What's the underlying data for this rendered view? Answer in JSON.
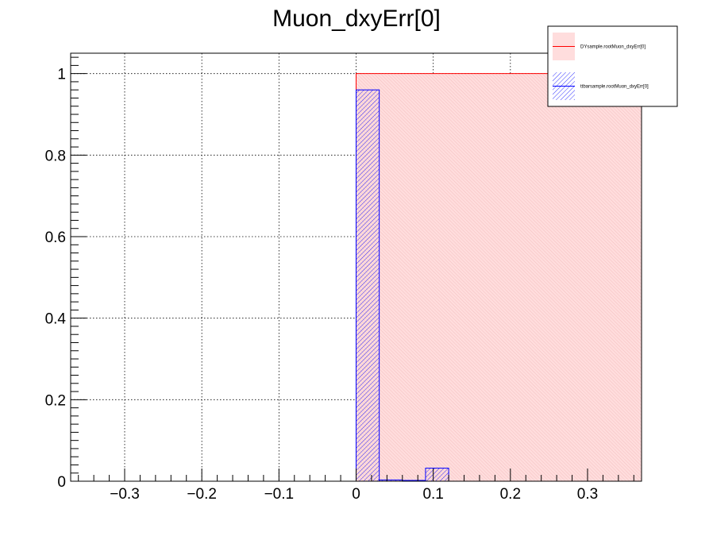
{
  "chart_data": {
    "type": "bar",
    "title": "Muon_dxyErr[0]",
    "xlabel": "",
    "ylabel": "",
    "xlim": [
      -0.37,
      0.37
    ],
    "ylim": [
      0,
      1.05
    ],
    "grid": true,
    "legend_position": "top-right",
    "x_tick_labels": [
      "−0.3",
      "−0.2",
      "−0.1",
      "0",
      "0.1",
      "0.2",
      "0.3"
    ],
    "x_tick_values": [
      -0.3,
      -0.2,
      -0.1,
      0,
      0.1,
      0.2,
      0.3
    ],
    "y_tick_labels": [
      "0",
      "0.2",
      "0.4",
      "0.6",
      "0.8",
      "1"
    ],
    "y_tick_values": [
      0,
      0.2,
      0.4,
      0.6,
      0.8,
      1.0
    ],
    "series": [
      {
        "name": "DYsample.rootMuon_dxyErr[0]",
        "color": "#ff0000",
        "fill": "#ffdddd",
        "style": "solid-fill",
        "bins": [
          {
            "x0": 0.0,
            "x1": 0.37,
            "value": 1.0
          }
        ]
      },
      {
        "name": "ttbarsample.rootMuon_dxyErr[0]",
        "color": "#0000ff",
        "fill": "#0000ff",
        "style": "hatched",
        "bins": [
          {
            "x0": 0.0,
            "x1": 0.03,
            "value": 0.96
          },
          {
            "x0": 0.03,
            "x1": 0.06,
            "value": 0.003
          },
          {
            "x0": 0.06,
            "x1": 0.09,
            "value": 0.002
          },
          {
            "x0": 0.09,
            "x1": 0.12,
            "value": 0.032
          }
        ]
      }
    ]
  }
}
